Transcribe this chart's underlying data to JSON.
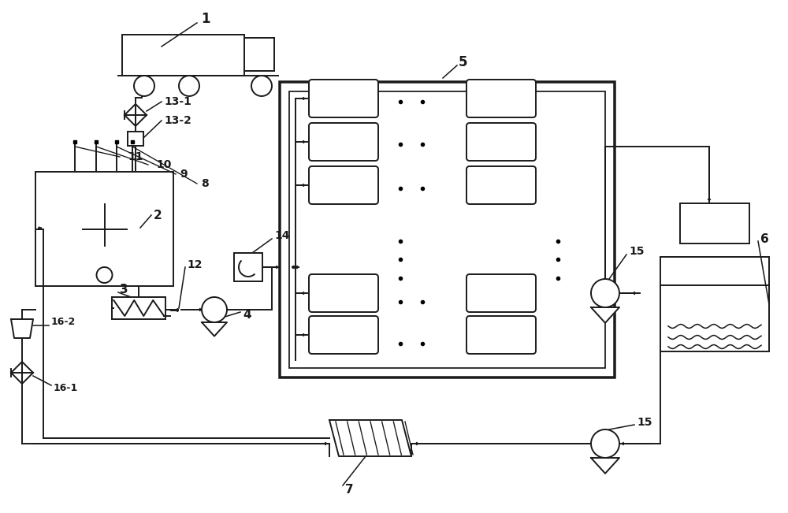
{
  "bg_color": "#ffffff",
  "lc": "#1a1a1a",
  "lw": 1.4,
  "fig_w": 10.0,
  "fig_h": 6.51,
  "dpi": 100
}
